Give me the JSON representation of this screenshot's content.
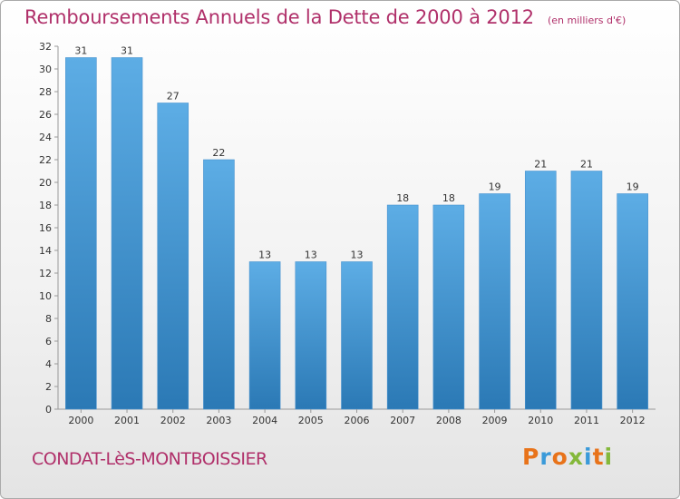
{
  "chart_data": {
    "type": "bar",
    "title": "Remboursements Annuels de la Dette de 2000 à 2012",
    "unit_label": "(en milliers d'€)",
    "categories": [
      "2000",
      "2001",
      "2002",
      "2003",
      "2004",
      "2005",
      "2006",
      "2007",
      "2008",
      "2009",
      "2010",
      "2011",
      "2012"
    ],
    "values": [
      31,
      31,
      27,
      22,
      13,
      13,
      13,
      18,
      18,
      19,
      21,
      21,
      19
    ],
    "ylim": [
      0,
      32
    ],
    "yticks": [
      0,
      2,
      4,
      6,
      8,
      10,
      12,
      14,
      16,
      18,
      20,
      22,
      24,
      26,
      28,
      30,
      32
    ],
    "grid": false,
    "bar_color_top": "#5dade5",
    "bar_color_bottom": "#2b79b5"
  },
  "footer": {
    "commune": "CONDAT-LèS-MONTBOISSIER",
    "brand": "Proxiti",
    "brand_colors": [
      "#e8731a",
      "#3a9ad9",
      "#e8731a",
      "#84b83a",
      "#3a9ad9",
      "#e8731a",
      "#84b83a"
    ]
  },
  "colors": {
    "accent": "#b0306a"
  }
}
